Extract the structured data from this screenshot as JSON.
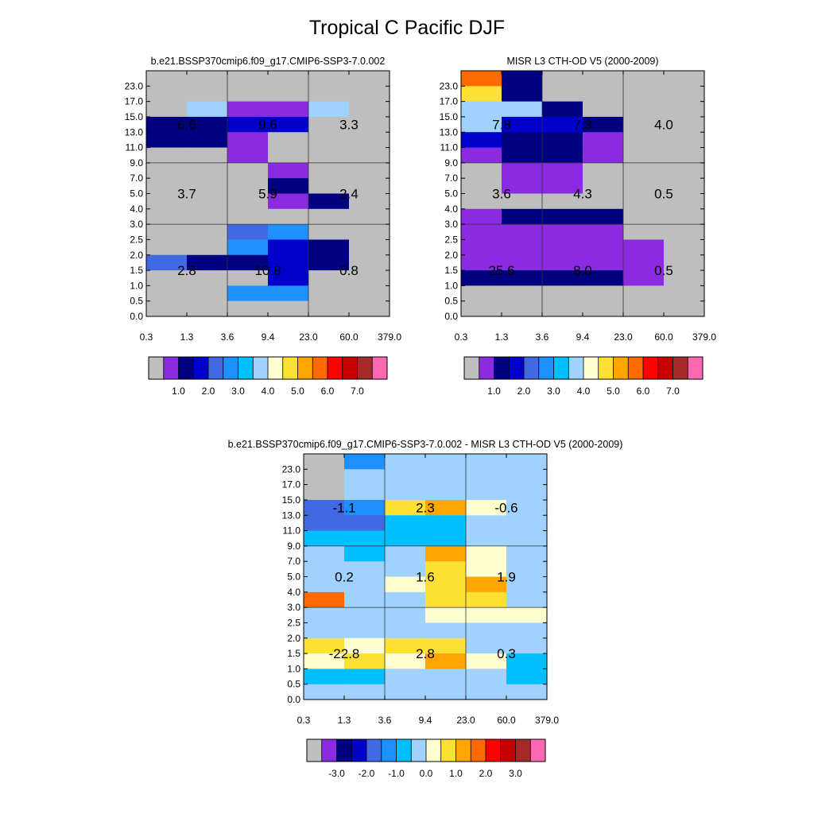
{
  "title": "Tropical C Pacific DJF",
  "x_tick_labels": [
    "0.3",
    "1.3",
    "3.6",
    "9.4",
    "23.0",
    "60.0",
    "379.0"
  ],
  "y_tick_labels": [
    "0.0",
    "0.5",
    "1.0",
    "1.5",
    "2.0",
    "2.5",
    "3.0",
    "4.0",
    "5.0",
    "7.0",
    "9.0",
    "11.0",
    "13.0",
    "15.0",
    "17.0",
    "23.0"
  ],
  "palettes": {
    "abs": [
      "#bebebe",
      "#8a2be2",
      "#000080",
      "#0000cd",
      "#4169e1",
      "#1e90ff",
      "#00bfff",
      "#a0d2ff",
      "#ffffd0",
      "#ffe135",
      "#ffa500",
      "#ff6a00",
      "#ff0000",
      "#c80000",
      "#a52a2a",
      "#ff69b4"
    ],
    "diff": [
      "#bebebe",
      "#8a2be2",
      "#000080",
      "#0000cd",
      "#4169e1",
      "#1e90ff",
      "#00bfff",
      "#a0d2ff",
      "#ffffd0",
      "#ffe135",
      "#ffa500",
      "#ff6a00",
      "#ff0000",
      "#c80000",
      "#a52a2a",
      "#ff69b4"
    ]
  },
  "colorbars": [
    {
      "tick_labels": [
        "1.0",
        "2.0",
        "3.0",
        "4.0",
        "5.0",
        "6.0",
        "7.0"
      ]
    },
    {
      "tick_labels": [
        "1.0",
        "2.0",
        "3.0",
        "4.0",
        "5.0",
        "6.0",
        "7.0"
      ]
    },
    {
      "tick_labels": [
        "-3.0",
        "-2.0",
        "-1.0",
        "0.0",
        "1.0",
        "2.0",
        "3.0"
      ]
    }
  ],
  "chart_data": [
    {
      "type": "heatmap",
      "title": "b.e21.BSSP370cmip6.f09_g17.CMIP6-SSP3-7.0.002",
      "palette": "abs",
      "grid": [
        [
          0,
          0,
          0,
          0,
          0,
          0
        ],
        [
          0,
          0,
          0,
          0,
          0,
          0
        ],
        [
          0,
          7,
          1,
          1,
          7,
          0
        ],
        [
          2,
          2,
          3,
          3,
          0,
          0
        ],
        [
          2,
          2,
          1,
          0,
          0,
          0
        ],
        [
          0,
          0,
          1,
          0,
          0,
          0
        ],
        [
          0,
          0,
          0,
          1,
          0,
          0
        ],
        [
          0,
          0,
          0,
          2,
          0,
          0
        ],
        [
          0,
          0,
          0,
          1,
          2,
          0
        ],
        [
          0,
          0,
          0,
          0,
          0,
          0
        ],
        [
          0,
          0,
          4,
          5,
          0,
          0
        ],
        [
          0,
          0,
          5,
          3,
          2,
          0
        ],
        [
          4,
          2,
          2,
          3,
          2,
          0
        ],
        [
          0,
          0,
          0,
          3,
          0,
          0
        ],
        [
          0,
          0,
          5,
          5,
          0,
          0
        ],
        [
          0,
          0,
          0,
          0,
          0,
          0
        ]
      ],
      "labels": [
        {
          "row": 0,
          "col": 0,
          "text": "6.6"
        },
        {
          "row": 0,
          "col": 1,
          "text": "9.6"
        },
        {
          "row": 0,
          "col": 2,
          "text": "3.3"
        },
        {
          "row": 1,
          "col": 0,
          "text": "3.7"
        },
        {
          "row": 1,
          "col": 1,
          "text": "5.9"
        },
        {
          "row": 1,
          "col": 2,
          "text": "2.4"
        },
        {
          "row": 2,
          "col": 0,
          "text": "2.8"
        },
        {
          "row": 2,
          "col": 1,
          "text": "10.8"
        },
        {
          "row": 2,
          "col": 2,
          "text": "0.8"
        }
      ]
    },
    {
      "type": "heatmap",
      "title": "MISR L3 CTH-OD V5 (2000-2009)",
      "palette": "abs",
      "grid": [
        [
          11,
          2,
          0,
          0,
          0,
          0
        ],
        [
          9,
          2,
          0,
          0,
          0,
          0
        ],
        [
          7,
          7,
          2,
          0,
          0,
          0
        ],
        [
          7,
          3,
          3,
          2,
          0,
          0
        ],
        [
          3,
          2,
          2,
          1,
          0,
          0
        ],
        [
          1,
          2,
          2,
          1,
          0,
          0
        ],
        [
          0,
          1,
          1,
          0,
          0,
          0
        ],
        [
          0,
          1,
          1,
          0,
          0,
          0
        ],
        [
          0,
          0,
          0,
          0,
          0,
          0
        ],
        [
          1,
          2,
          2,
          2,
          0,
          0
        ],
        [
          1,
          1,
          1,
          1,
          0,
          0
        ],
        [
          1,
          1,
          1,
          1,
          1,
          0
        ],
        [
          1,
          1,
          1,
          1,
          1,
          0
        ],
        [
          2,
          2,
          2,
          2,
          1,
          0
        ],
        [
          0,
          0,
          0,
          0,
          0,
          0
        ],
        [
          0,
          0,
          0,
          0,
          0,
          0
        ]
      ],
      "labels": [
        {
          "row": 0,
          "col": 0,
          "text": "7.8"
        },
        {
          "row": 0,
          "col": 1,
          "text": "7.3"
        },
        {
          "row": 0,
          "col": 2,
          "text": "4.0"
        },
        {
          "row": 1,
          "col": 0,
          "text": "3.6"
        },
        {
          "row": 1,
          "col": 1,
          "text": "4.3"
        },
        {
          "row": 1,
          "col": 2,
          "text": "0.5"
        },
        {
          "row": 2,
          "col": 0,
          "text": "25.6"
        },
        {
          "row": 2,
          "col": 1,
          "text": "8.0"
        },
        {
          "row": 2,
          "col": 2,
          "text": "0.5"
        }
      ]
    },
    {
      "type": "heatmap",
      "title": "b.e21.BSSP370cmip6.f09_g17.CMIP6-SSP3-7.0.002 - MISR L3 CTH-OD V5 (2000-2009)",
      "palette": "diff",
      "grid": [
        [
          0,
          5,
          7,
          7,
          7,
          7
        ],
        [
          0,
          7,
          7,
          7,
          7,
          7
        ],
        [
          0,
          7,
          7,
          7,
          7,
          7
        ],
        [
          4,
          5,
          9,
          10,
          8,
          7
        ],
        [
          4,
          4,
          6,
          6,
          7,
          7
        ],
        [
          6,
          6,
          6,
          6,
          7,
          7
        ],
        [
          7,
          6,
          7,
          10,
          8,
          7
        ],
        [
          7,
          7,
          7,
          9,
          8,
          7
        ],
        [
          7,
          7,
          8,
          9,
          10,
          7
        ],
        [
          11,
          7,
          7,
          9,
          9,
          7
        ],
        [
          7,
          7,
          7,
          8,
          8,
          8
        ],
        [
          7,
          7,
          7,
          7,
          7,
          7
        ],
        [
          9,
          8,
          9,
          9,
          7,
          7
        ],
        [
          8,
          9,
          8,
          10,
          8,
          6
        ],
        [
          6,
          6,
          7,
          7,
          7,
          6
        ],
        [
          7,
          7,
          7,
          7,
          7,
          7
        ]
      ],
      "labels": [
        {
          "row": 0,
          "col": 0,
          "text": "-1.1"
        },
        {
          "row": 0,
          "col": 1,
          "text": "2.3"
        },
        {
          "row": 0,
          "col": 2,
          "text": "-0.6"
        },
        {
          "row": 1,
          "col": 0,
          "text": "0.2"
        },
        {
          "row": 1,
          "col": 1,
          "text": "1.6"
        },
        {
          "row": 1,
          "col": 2,
          "text": "1.9"
        },
        {
          "row": 2,
          "col": 0,
          "text": "-22.8"
        },
        {
          "row": 2,
          "col": 1,
          "text": "2.8"
        },
        {
          "row": 2,
          "col": 2,
          "text": "0.3"
        }
      ]
    }
  ]
}
